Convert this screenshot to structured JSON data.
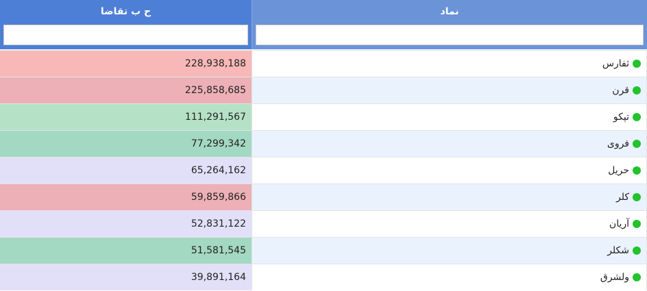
{
  "columns": {
    "demand": "ح ب تقاضا",
    "symbol": "نماد"
  },
  "filters": {
    "demand": "",
    "symbol": ""
  },
  "colors": {
    "status_dot": "#22c32e",
    "header_left": "#4e7fd6",
    "header_right": "#6a93d8"
  },
  "rows": [
    {
      "symbol": "ثفارس",
      "demand": "228,938,188",
      "bg": "#f8b8b8",
      "rbg": "#ffffff"
    },
    {
      "symbol": "قرن",
      "demand": "225,858,685",
      "bg": "#ecb0b6",
      "rbg": "#eaf2fd"
    },
    {
      "symbol": "تپکو",
      "demand": "111,291,567",
      "bg": "#b5e2c6",
      "rbg": "#ffffff"
    },
    {
      "symbol": "فروی",
      "demand": "77,299,342",
      "bg": "#a3d8c2",
      "rbg": "#eaf2fd"
    },
    {
      "symbol": "حریل",
      "demand": "65,264,162",
      "bg": "#e2e0f8",
      "rbg": "#ffffff"
    },
    {
      "symbol": "کلر",
      "demand": "59,859,866",
      "bg": "#ecb0b6",
      "rbg": "#eaf2fd"
    },
    {
      "symbol": "آریان",
      "demand": "52,831,122",
      "bg": "#e2e0f8",
      "rbg": "#ffffff"
    },
    {
      "symbol": "شکلر",
      "demand": "51,581,545",
      "bg": "#a3d8c2",
      "rbg": "#eaf2fd"
    },
    {
      "symbol": "ولشرق",
      "demand": "39,891,164",
      "bg": "#e2e0f8",
      "rbg": "#ffffff"
    }
  ]
}
